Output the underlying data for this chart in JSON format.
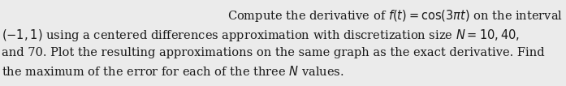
{
  "line1": "Compute the derivative of $f(t) = \\cos(3\\pi t)$ on the interval",
  "line2": "$(-1,1)$ using a centered differences approximation with discretization size $N = 10, 40,$",
  "line3": "and 70. Plot the resulting approximations on the same graph as the exact derivative. Find",
  "line4": "the maximum of the error for each of the three $N$ values.",
  "font_size": 10.5,
  "text_color": "#1a1a1a",
  "bg_color": "#ebebeb",
  "fig_width": 6.97,
  "fig_height": 1.06,
  "dpi": 100
}
